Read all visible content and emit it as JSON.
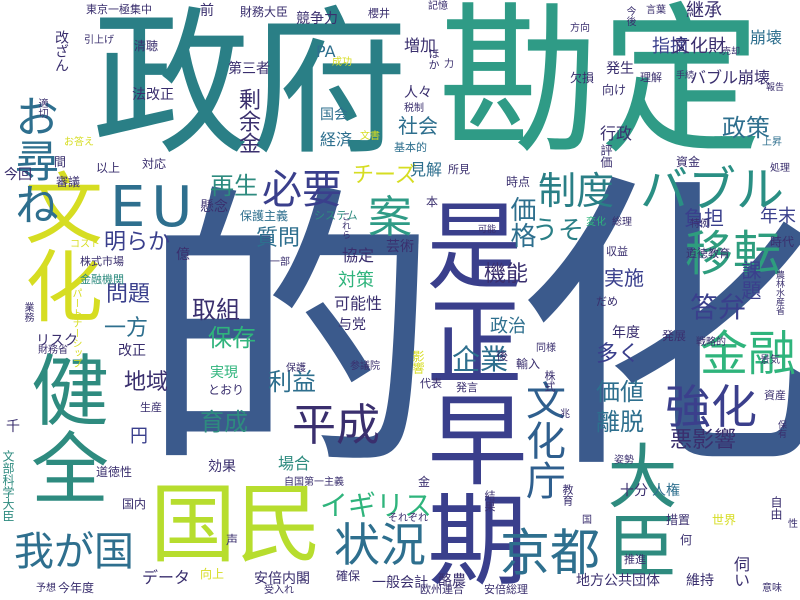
{
  "cloud": {
    "words": [
      {
        "text": "的",
        "color": "#3b5a8c"
      },
      {
        "text": "化",
        "color": "#3b5a8c"
      },
      {
        "text": "政府",
        "color": "#2a7f86"
      },
      {
        "text": "勘定",
        "color": "#2f9b86"
      },
      {
        "text": "健全",
        "color": "#2e8b7f"
      },
      {
        "text": "文化",
        "color": "#d6dd22"
      },
      {
        "text": "早期",
        "color": "#3a3f8c"
      },
      {
        "text": "是正",
        "color": "#3a3f8c"
      },
      {
        "text": "大臣",
        "color": "#2e8b7f"
      },
      {
        "text": "国民",
        "color": "#b7dd2e"
      },
      {
        "text": "お尋ね",
        "color": "#2e6f8e"
      },
      {
        "text": "EU",
        "color": "#2e6f8e"
      },
      {
        "text": "バブル",
        "color": "#2a8f84"
      },
      {
        "text": "移転",
        "color": "#2e9d7e"
      },
      {
        "text": "金融",
        "color": "#2fb47c"
      },
      {
        "text": "制度",
        "color": "#2a7f86"
      },
      {
        "text": "必要",
        "color": "#3a3f8c"
      },
      {
        "text": "案",
        "color": "#2f9b86"
      },
      {
        "text": "再生",
        "color": "#2e8b7f"
      },
      {
        "text": "文化庁",
        "color": "#2f5f8e"
      },
      {
        "text": "強化",
        "color": "#3b3f8c"
      },
      {
        "text": "平成",
        "color": "#3a2f6e"
      },
      {
        "text": "状況",
        "color": "#2e6f8e"
      },
      {
        "text": "京都",
        "color": "#2e6f8e"
      },
      {
        "text": "我が国",
        "color": "#2e6f8e"
      },
      {
        "text": "企業",
        "color": "#2e6f8e"
      },
      {
        "text": "イギリス",
        "color": "#2fb47c"
      },
      {
        "text": "答弁",
        "color": "#3a3f8c"
      },
      {
        "text": "明らか",
        "color": "#3a3f8c"
      },
      {
        "text": "チーズ",
        "color": "#d6dd22"
      },
      {
        "text": "うそ",
        "color": "#2a7f86"
      },
      {
        "text": "価格",
        "color": "#2e6f8e"
      },
      {
        "text": "質問",
        "color": "#2e6f8e"
      },
      {
        "text": "取組",
        "color": "#3a2f6e"
      },
      {
        "text": "保存",
        "color": "#2fb47c"
      },
      {
        "text": "利益",
        "color": "#2e6f8e"
      },
      {
        "text": "育成",
        "color": "#2e8b7f"
      },
      {
        "text": "地域",
        "color": "#3a2f6e"
      },
      {
        "text": "一方",
        "color": "#2e6f8e"
      },
      {
        "text": "問題",
        "color": "#3a3f8c"
      },
      {
        "text": "機能",
        "color": "#3a2f6e"
      },
      {
        "text": "政治",
        "color": "#2e6f8e"
      },
      {
        "text": "実施",
        "color": "#3a3f8c"
      },
      {
        "text": "価値",
        "color": "#2e6f8e"
      },
      {
        "text": "離脱",
        "color": "#2e6f8e"
      },
      {
        "text": "悪影響",
        "color": "#3a2f6e"
      },
      {
        "text": "多く",
        "color": "#3a3f8c"
      },
      {
        "text": "課題",
        "color": "#3a3f8c"
      },
      {
        "text": "年末",
        "color": "#3a3f8c"
      },
      {
        "text": "負担",
        "color": "#3a3f8c"
      },
      {
        "text": "政策",
        "color": "#2e6f8e"
      },
      {
        "text": "崩壊",
        "color": "#2e6f8e"
      },
      {
        "text": "指摘",
        "color": "#3a3f8c"
      },
      {
        "text": "継承",
        "color": "#3a2f6e"
      },
      {
        "text": "文化財",
        "color": "#3a2f6e"
      },
      {
        "text": "剰余金",
        "color": "#3a2f6e"
      },
      {
        "text": "国会",
        "color": "#2e6f8e"
      },
      {
        "text": "社会",
        "color": "#2e6f8e"
      },
      {
        "text": "経済",
        "color": "#2e6f8e"
      },
      {
        "text": "見解",
        "color": "#2e6f8e"
      },
      {
        "text": "PA",
        "color": "#2e6f8e"
      },
      {
        "text": "増加",
        "color": "#3a2f6e"
      },
      {
        "text": "競争力",
        "color": "#3a2f6e"
      },
      {
        "text": "財務大臣",
        "color": "#3a2f6e"
      },
      {
        "text": "前",
        "color": "#3a2f6e"
      },
      {
        "text": "東京一極集中",
        "color": "#3a2f6e"
      },
      {
        "text": "第三者",
        "color": "#3a2f6e"
      },
      {
        "text": "法改正",
        "color": "#3a2f6e"
      },
      {
        "text": "清聴",
        "color": "#3a2f6e"
      },
      {
        "text": "今回",
        "color": "#3a2f6e"
      },
      {
        "text": "懸念",
        "color": "#3a2f6e"
      },
      {
        "text": "保護主義",
        "color": "#2e6f8e"
      },
      {
        "text": "システム",
        "color": "#2e8b7f"
      },
      {
        "text": "芸術",
        "color": "#3a2f6e"
      },
      {
        "text": "協定",
        "color": "#3a2f6e"
      },
      {
        "text": "対策",
        "color": "#2fb47c"
      },
      {
        "text": "可能性",
        "color": "#3a2f6e"
      },
      {
        "text": "与党",
        "color": "#3a2f6e"
      },
      {
        "text": "実現",
        "color": "#2fb47c"
      },
      {
        "text": "とおり",
        "color": "#3a2f6e"
      },
      {
        "text": "円",
        "color": "#3a3f8c"
      },
      {
        "text": "改正",
        "color": "#3a2f6e"
      },
      {
        "text": "リスク",
        "color": "#3a2f6e"
      },
      {
        "text": "効果",
        "color": "#3a2f6e"
      },
      {
        "text": "場合",
        "color": "#2e8b7f"
      },
      {
        "text": "国内",
        "color": "#3a2f6e"
      },
      {
        "text": "道徳性",
        "color": "#3a2f6e"
      },
      {
        "text": "データ",
        "color": "#3a2f6e"
      },
      {
        "text": "安倍内閣",
        "color": "#3a2f6e"
      },
      {
        "text": "一般会計",
        "color": "#3a2f6e"
      },
      {
        "text": "酪農",
        "color": "#3a2f6e"
      },
      {
        "text": "地方公共団体",
        "color": "#3a2f6e"
      },
      {
        "text": "維持",
        "color": "#3a2f6e"
      },
      {
        "text": "伺い",
        "color": "#3a2f6e"
      },
      {
        "text": "十分",
        "color": "#3a2f6e"
      },
      {
        "text": "人権",
        "color": "#2e6f8e"
      },
      {
        "text": "措置",
        "color": "#3a2f6e"
      },
      {
        "text": "世界",
        "color": "#d6dd22"
      },
      {
        "text": "自由",
        "color": "#3a2f6e"
      },
      {
        "text": "時代",
        "color": "#3a2f6e"
      },
      {
        "text": "バブル崩壊",
        "color": "#3a2f6e"
      },
      {
        "text": "行政",
        "color": "#3a2f6e"
      },
      {
        "text": "発生",
        "color": "#3a2f6e"
      },
      {
        "text": "欠損",
        "color": "#3a2f6e"
      },
      {
        "text": "国会",
        "color": "#2e6f8e"
      },
      {
        "text": "文部科学大臣",
        "color": "#2e8b7f"
      },
      {
        "text": "千",
        "color": "#3a2f6e"
      },
      {
        "text": "今年度",
        "color": "#3a2f6e"
      },
      {
        "text": "予想",
        "color": "#3a2f6e"
      },
      {
        "text": "財務省",
        "color": "#3a2f6e"
      },
      {
        "text": "株式市場",
        "color": "#3a2f6e"
      },
      {
        "text": "金融機関",
        "color": "#2e8b7f"
      },
      {
        "text": "以上",
        "color": "#3a2f6e"
      },
      {
        "text": "対応",
        "color": "#3a2f6e"
      },
      {
        "text": "審議",
        "color": "#3a2f6e"
      },
      {
        "text": "間",
        "color": "#3a2f6e"
      },
      {
        "text": "引上げ",
        "color": "#3a2f6e"
      },
      {
        "text": "改ざん",
        "color": "#3a2f6e"
      },
      {
        "text": "人々",
        "color": "#3a2f6e"
      },
      {
        "text": "基本的",
        "color": "#2e6f8e"
      },
      {
        "text": "所見",
        "color": "#3a2f6e"
      },
      {
        "text": "時点",
        "color": "#3a2f6e"
      },
      {
        "text": "本",
        "color": "#3a2f6e"
      },
      {
        "text": "資金",
        "color": "#3a2f6e"
      },
      {
        "text": "評価",
        "color": "#3a2f6e"
      },
      {
        "text": "道徳教育",
        "color": "#3a2f6e"
      },
      {
        "text": "特例",
        "color": "#3a2f6e"
      },
      {
        "text": "総理",
        "color": "#3a2f6e"
      },
      {
        "text": "変化",
        "color": "#2fb47c"
      },
      {
        "text": "戦略的",
        "color": "#3a2f6e"
      },
      {
        "text": "年度",
        "color": "#3a2f6e"
      },
      {
        "text": "発展",
        "color": "#3a2f6e"
      },
      {
        "text": "輸入",
        "color": "#3a2f6e"
      },
      {
        "text": "同様",
        "color": "#3a2f6e"
      },
      {
        "text": "後",
        "color": "#3a2f6e"
      },
      {
        "text": "発言",
        "color": "#3a2f6e"
      },
      {
        "text": "代表",
        "color": "#3a2f6e"
      },
      {
        "text": "参議院",
        "color": "#3a2f6e"
      },
      {
        "text": "向上",
        "color": "#d6dd22"
      },
      {
        "text": "確保",
        "color": "#3a2f6e"
      },
      {
        "text": "欧州連合",
        "color": "#3a2f6e"
      },
      {
        "text": "安倍総理",
        "color": "#3a2f6e"
      },
      {
        "text": "意味",
        "color": "#3a2f6e"
      },
      {
        "text": "推進",
        "color": "#3a2f6e"
      },
      {
        "text": "何",
        "color": "#3a2f6e"
      },
      {
        "text": "姿勢",
        "color": "#3a2f6e"
      },
      {
        "text": "資産",
        "color": "#3a2f6e"
      },
      {
        "text": "景気",
        "color": "#3a2f6e"
      },
      {
        "text": "株式",
        "color": "#3a2f6e"
      },
      {
        "text": "兆",
        "color": "#3a2f6e"
      },
      {
        "text": "億",
        "color": "#3a2f6e"
      },
      {
        "text": "生産",
        "color": "#3a2f6e"
      },
      {
        "text": "コスト",
        "color": "#d6dd22"
      },
      {
        "text": "一部",
        "color": "#3a2f6e"
      },
      {
        "text": "自国第一主義",
        "color": "#3a2f6e"
      },
      {
        "text": "声",
        "color": "#3a2f6e"
      },
      {
        "text": "金",
        "color": "#3a2f6e"
      },
      {
        "text": "結果",
        "color": "#3a2f6e"
      },
      {
        "text": "教育",
        "color": "#3a2f6e"
      },
      {
        "text": "国",
        "color": "#3a2f6e"
      },
      {
        "text": "上昇",
        "color": "#2e6f8e"
      },
      {
        "text": "処理",
        "color": "#3a2f6e"
      },
      {
        "text": "報告",
        "color": "#3a2f6e"
      },
      {
        "text": "理解",
        "color": "#3a2f6e"
      },
      {
        "text": "手続",
        "color": "#3a2f6e"
      },
      {
        "text": "向け",
        "color": "#3a2f6e"
      },
      {
        "text": "ほか",
        "color": "#3a2f6e"
      },
      {
        "text": "力",
        "color": "#3a2f6e"
      },
      {
        "text": "文書",
        "color": "#d6dd22"
      },
      {
        "text": "税制",
        "color": "#3a2f6e"
      },
      {
        "text": "成功",
        "color": "#d6dd22"
      },
      {
        "text": "櫻井",
        "color": "#3a2f6e"
      },
      {
        "text": "記憶",
        "color": "#3a2f6e"
      },
      {
        "text": "今後",
        "color": "#3a2f6e"
      },
      {
        "text": "言葉",
        "color": "#3a2f6e"
      },
      {
        "text": "方向",
        "color": "#3a2f6e"
      },
      {
        "text": "売却",
        "color": "#3a2f6e"
      },
      {
        "text": "パートナーシップ",
        "color": "#d6dd22"
      },
      {
        "text": "だめ",
        "color": "#3a2f6e"
      },
      {
        "text": "農林水産省",
        "color": "#3a2f6e"
      },
      {
        "text": "保有",
        "color": "#3a2f6e"
      },
      {
        "text": "お答え",
        "color": "#d6dd22"
      },
      {
        "text": "撤退",
        "color": "#3a2f6e"
      },
      {
        "text": "受入れ",
        "color": "#3a2f6e"
      },
      {
        "text": "それぞれ",
        "color": "#3a2f6e"
      },
      {
        "text": "増える",
        "color": "#3a2f6e"
      },
      {
        "text": "収益",
        "color": "#3a2f6e"
      },
      {
        "text": "業務",
        "color": "#3a2f6e"
      },
      {
        "text": "影響",
        "color": "#d6dd22"
      },
      {
        "text": "保護",
        "color": "#3a2f6e"
      },
      {
        "text": "受ける",
        "color": "#3a2f6e"
      },
      {
        "text": "これら",
        "color": "#3a2f6e"
      },
      {
        "text": "可能",
        "color": "#3a2f6e"
      },
      {
        "text": "性",
        "color": "#3a2f6e"
      },
      {
        "text": "適切",
        "color": "#3a2f6e"
      }
    ]
  }
}
